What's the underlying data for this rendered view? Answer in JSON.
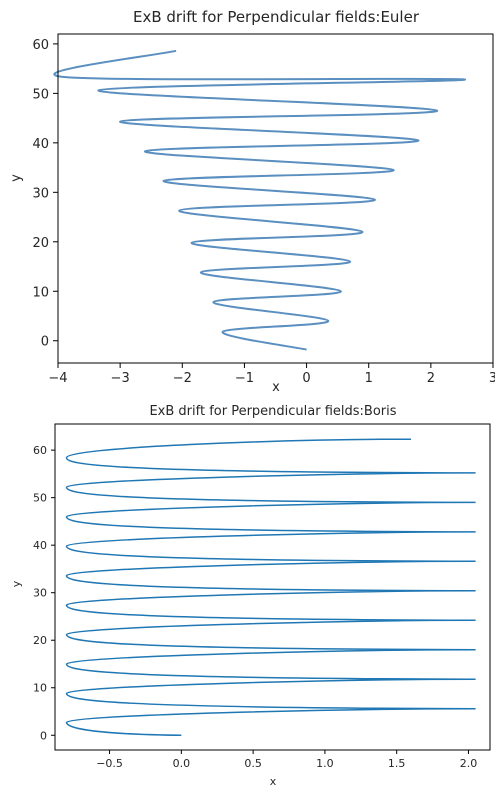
{
  "chart_data": [
    {
      "type": "line",
      "title": "ExB drift for Perpendicular fields:Euler",
      "xlabel": "x",
      "ylabel": "y",
      "xlim": [
        -4,
        3
      ],
      "ylim": [
        -4.5,
        62
      ],
      "xticks": [
        "−4",
        "−3",
        "−2",
        "−1",
        "0",
        "1",
        "2",
        "3"
      ],
      "yticks": [
        "0",
        "10",
        "20",
        "30",
        "40",
        "50",
        "60"
      ],
      "line_color": "#5a8fc0",
      "curve": {
        "start": [
          -0.0,
          -1.8
        ],
        "end": [
          -2.1,
          58.6
        ],
        "loop_centers_y": [
          4.0,
          10.0,
          16.0,
          22.0,
          28.5,
          34.5,
          40.5,
          46.5,
          52.8
        ],
        "loop_right_x": [
          0.35,
          0.55,
          0.7,
          0.9,
          1.1,
          1.4,
          1.8,
          2.1,
          2.55
        ],
        "loop_left_x": [
          -1.35,
          -1.5,
          -1.7,
          -1.85,
          -2.05,
          -2.3,
          -2.6,
          -3.0,
          -3.35,
          -3.9
        ]
      },
      "grid": false,
      "legend": "none"
    },
    {
      "type": "line",
      "title": "ExB drift for Perpendicular fields:Boris",
      "xlabel": "x",
      "ylabel": "y",
      "xlim": [
        -0.88,
        2.15
      ],
      "ylim": [
        -3.1,
        65.5
      ],
      "xticks": [
        "−0.5",
        "0.0",
        "0.5",
        "1.0",
        "1.5",
        "2.0"
      ],
      "xtick_values": [
        -0.5,
        0.0,
        0.5,
        1.0,
        1.5,
        2.0
      ],
      "yticks": [
        "0",
        "10",
        "20",
        "30",
        "40",
        "50",
        "60"
      ],
      "line_color": "#1f77b4",
      "curve": {
        "start": [
          0.0,
          0.0
        ],
        "end": [
          1.6,
          62.3
        ],
        "left_turn_y": [
          2.7,
          8.8,
          15.0,
          21.2,
          27.4,
          33.6,
          39.8,
          46.0,
          52.2,
          58.4
        ],
        "right_turn_y": [
          5.6,
          11.8,
          18.0,
          24.2,
          30.4,
          36.6,
          42.8,
          49.0,
          55.2
        ],
        "min_x": -0.8,
        "max_x": 2.05
      },
      "grid": false,
      "legend": "none"
    }
  ]
}
